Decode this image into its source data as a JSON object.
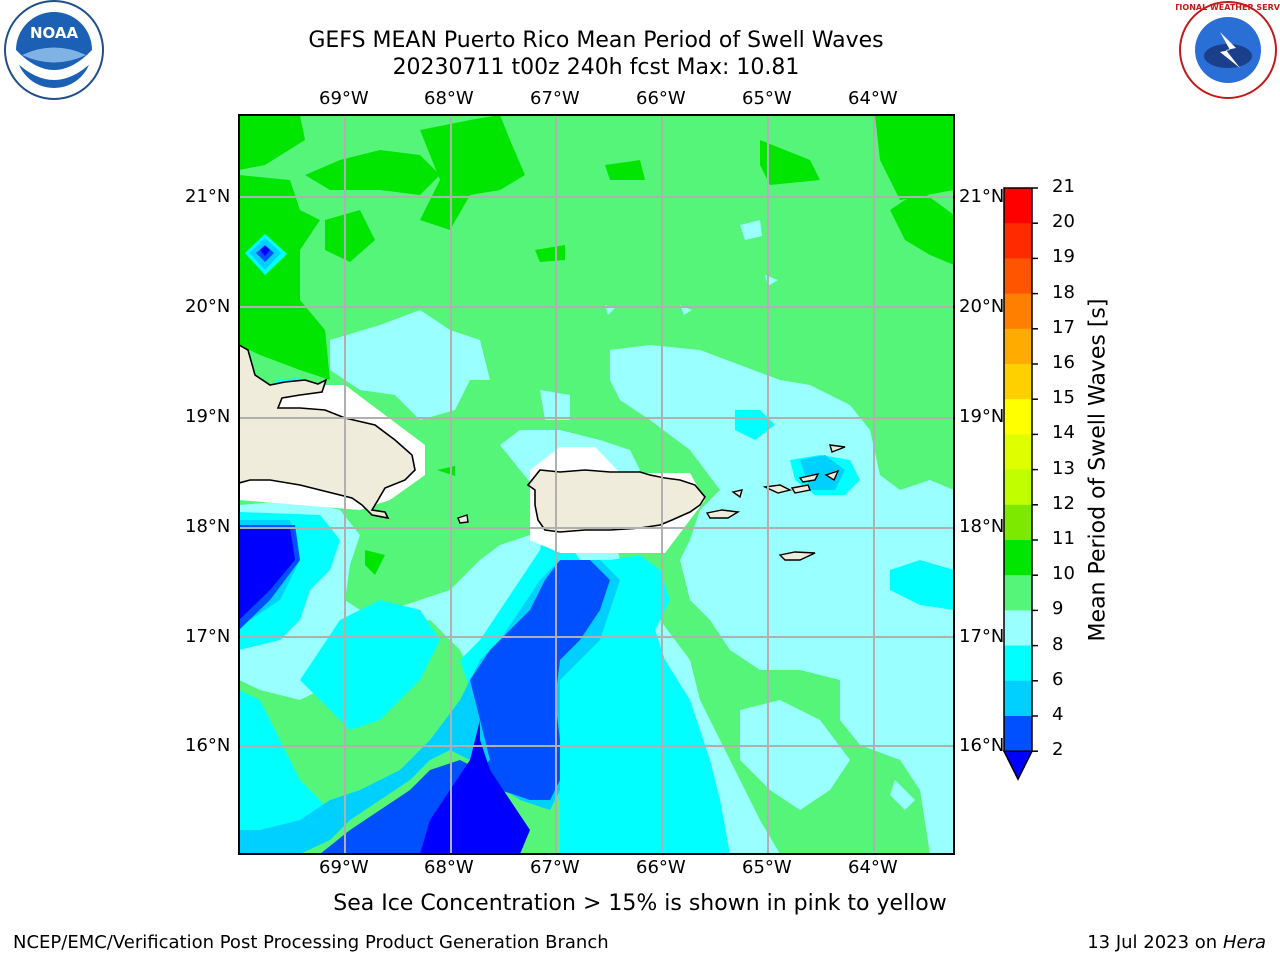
{
  "header": {
    "title_line1": "GEFS MEAN Puerto Rico Mean Period of Swell Waves",
    "title_line2": "20230711 t00z 240h fcst   Max: 10.81"
  },
  "logos": {
    "left": "NOAA",
    "right": "NATIONAL WEATHER SERVICE"
  },
  "map": {
    "lon_labels": [
      "69°W",
      "68°W",
      "67°W",
      "66°W",
      "65°W",
      "64°W"
    ],
    "lat_labels": [
      "21°N",
      "20°N",
      "19°N",
      "18°N",
      "17°N",
      "16°N"
    ],
    "land_color": "#efecdc",
    "ocean_colors": {
      "2-4": "#0050ff",
      "4-6": "#00d0ff",
      "6-8": "#00ffff",
      "8-9": "#9affff",
      "9-10": "#55f57a",
      "10-11": "#00e600"
    }
  },
  "colorbar": {
    "label": "Mean Period of Swell Waves [s]",
    "ticks": [
      "21",
      "20",
      "19",
      "18",
      "17",
      "16",
      "15",
      "14",
      "13",
      "12",
      "11",
      "10",
      "9",
      "8",
      "6",
      "4",
      "2"
    ],
    "colors": [
      "#ff0000",
      "#ff2a00",
      "#ff5500",
      "#ff8000",
      "#ffab00",
      "#ffd000",
      "#ffff00",
      "#dfff00",
      "#c0ff00",
      "#7de800",
      "#00e600",
      "#55f57a",
      "#9affff",
      "#00ffff",
      "#00d0ff",
      "#0050ff"
    ],
    "under_color": "#0000ff"
  },
  "note": "Sea Ice Concentration > 15% is shown in pink to yellow",
  "footer": {
    "left": "NCEP/EMC/Verification Post Processing Product Generation Branch",
    "right_date": "13 Jul 2023 on ",
    "right_host": "Hera"
  }
}
